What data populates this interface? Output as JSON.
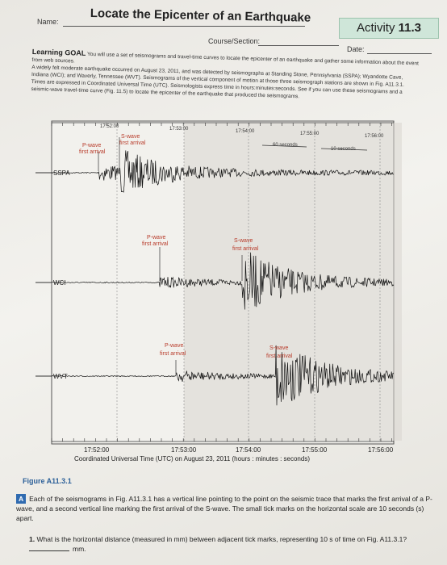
{
  "header": {
    "title": "Locate the Epicenter of an Earthquake",
    "activity_label": "Activity",
    "activity_number": "11.3",
    "name_label": "Name:",
    "course_label": "Course/Section:",
    "date_label": "Date:"
  },
  "intro": {
    "goal_label": "Learning GOAL",
    "goal_text": "You will use a set of seismograms and travel-time curves to locate the epicenter of an earthquake and gather some information about the event from web sources.",
    "paragraph": "A widely felt moderate earthquake occurred on August 23, 2011, and was detected by seismographs at Standing Stone, Pennsylvania (SSPA); Wyandotte Cave, Indiana (WCI); and Waverly, Tennessee (WVT). Seismograms of the vertical component of motion at those three seismograph stations are shown in Fig. A11.3.1. Times are expressed in Coordinated Universal Time (UTC). Seismologists express time in hours:minutes:seconds. See if you can use these seismograms and a seismic-wave travel-time curve (Fig. 11.5) to locate the epicenter of the earthquake that produced the seismograms."
  },
  "figure": {
    "top_ticks": [
      "17:52:00",
      "17:53:00",
      "17:54:00",
      "17:55:00",
      "17:56:00"
    ],
    "bottom_ticks": [
      "17:52:00",
      "17:53:00",
      "17:54:00",
      "17:55:00",
      "17:56:00"
    ],
    "scale_60": "60 seconds",
    "scale_10": "10 seconds",
    "x_axis_label": "Coordinated Universal Time (UTC) on August 23, 2011 (hours : minutes : seconds)",
    "stations": [
      {
        "code": "SSPA",
        "p_label": "P-wave",
        "p_sub": "first arrival",
        "s_label": "S-wave",
        "s_sub": "first arrival"
      },
      {
        "code": "WCI",
        "p_label": "P-wave",
        "p_sub": "first arrival",
        "s_label": "S-wave",
        "s_sub": "first arrival"
      },
      {
        "code": "WVT",
        "p_label": "P-wave",
        "p_sub": "first arrival",
        "s_label": "S-wave",
        "s_sub": "first arrival"
      }
    ],
    "caption": "Figure A11.3.1"
  },
  "questions": {
    "A_tag": "A",
    "A_text": "Each of the seismograms in Fig. A11.3.1 has a vertical line pointing to the point on the seismic trace that marks the first arrival of a P-wave, and a second vertical line marking the first arrival of the S-wave. The small tick marks on the horizontal scale are 10 seconds (s) apart.",
    "q1_number": "1.",
    "q1_text": "What is the horizontal distance (measured in mm) between adjacent tick marks, representing 10 s of time on Fig. A11.3.1?",
    "q1_unit": "mm."
  }
}
